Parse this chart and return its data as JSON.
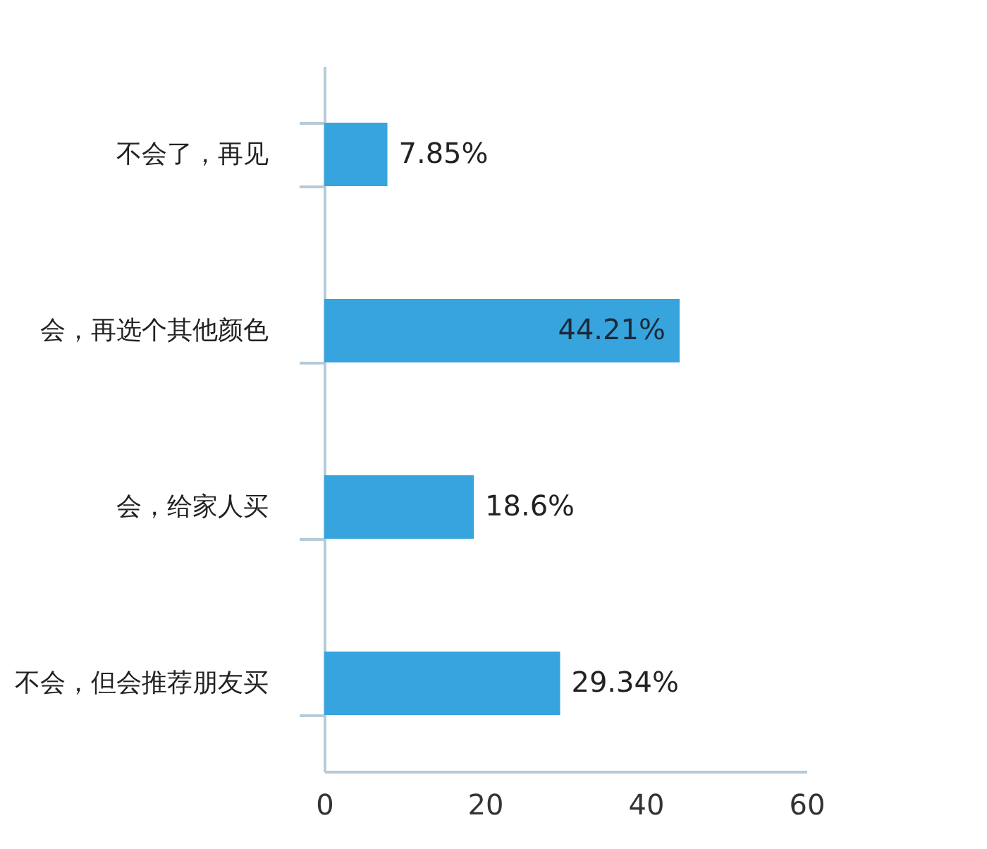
{
  "chart_data": {
    "type": "bar",
    "orientation": "horizontal",
    "categories": [
      "不会了，再见",
      "会，再选个其他颜色",
      "会，给家人买",
      "不会，但会推荐朋友买"
    ],
    "values": [
      7.85,
      44.21,
      18.6,
      29.34
    ],
    "value_labels": [
      "7.85%",
      "44.21%",
      "18.6%",
      "29.34%"
    ],
    "color": "#37a4dd",
    "xlim": [
      0,
      60
    ],
    "xticks": [
      0,
      20,
      40,
      60
    ],
    "grid": false
  }
}
